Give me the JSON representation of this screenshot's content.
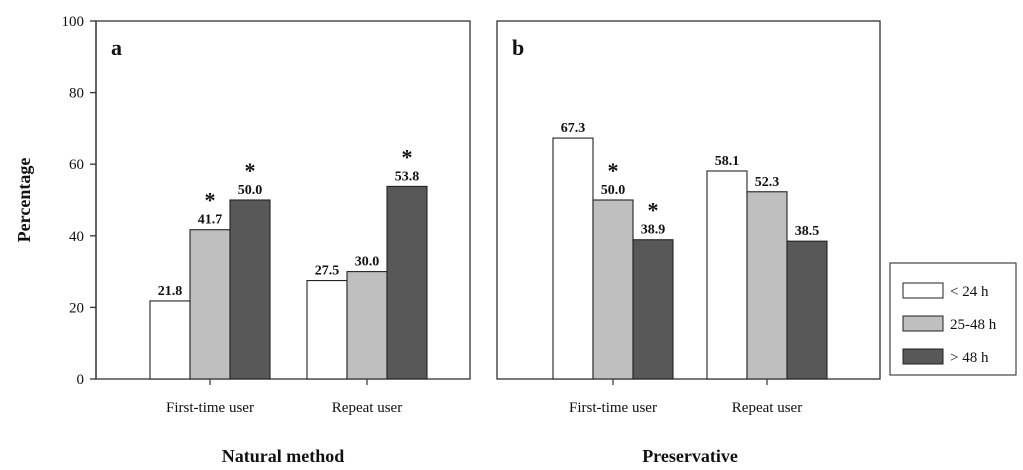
{
  "chart_data": {
    "type": "bar",
    "ylabel": "Percentage",
    "ylim": [
      0,
      100
    ],
    "yticks": [
      0,
      20,
      40,
      60,
      80,
      100
    ],
    "series_names": [
      "< 24 h",
      "25-48 h",
      "> 48 h"
    ],
    "colors": [
      "#ffffff",
      "#bfbfbf",
      "#585858"
    ],
    "panels": [
      {
        "letter": "a",
        "title": "Natural method",
        "categories": [
          "First-time user",
          "Repeat user"
        ],
        "values": [
          [
            21.8,
            41.7,
            50.0
          ],
          [
            27.5,
            30.0,
            53.8
          ]
        ],
        "labels": [
          [
            "21.8",
            "41.7",
            "50.0"
          ],
          [
            "27.5",
            "30.0",
            "53.8"
          ]
        ],
        "significant": [
          [
            false,
            true,
            true
          ],
          [
            false,
            false,
            true
          ]
        ]
      },
      {
        "letter": "b",
        "title": "Preservative",
        "categories": [
          "First-time user",
          "Repeat user"
        ],
        "values": [
          [
            67.3,
            50.0,
            38.9
          ],
          [
            58.1,
            52.3,
            38.5
          ]
        ],
        "labels": [
          [
            "67.3",
            "50.0",
            "38.9"
          ],
          [
            "58.1",
            "52.3",
            "38.5"
          ]
        ],
        "significant": [
          [
            false,
            true,
            true
          ],
          [
            false,
            false,
            false
          ]
        ]
      }
    ],
    "significance_marker": "*",
    "legend_position": "right"
  }
}
